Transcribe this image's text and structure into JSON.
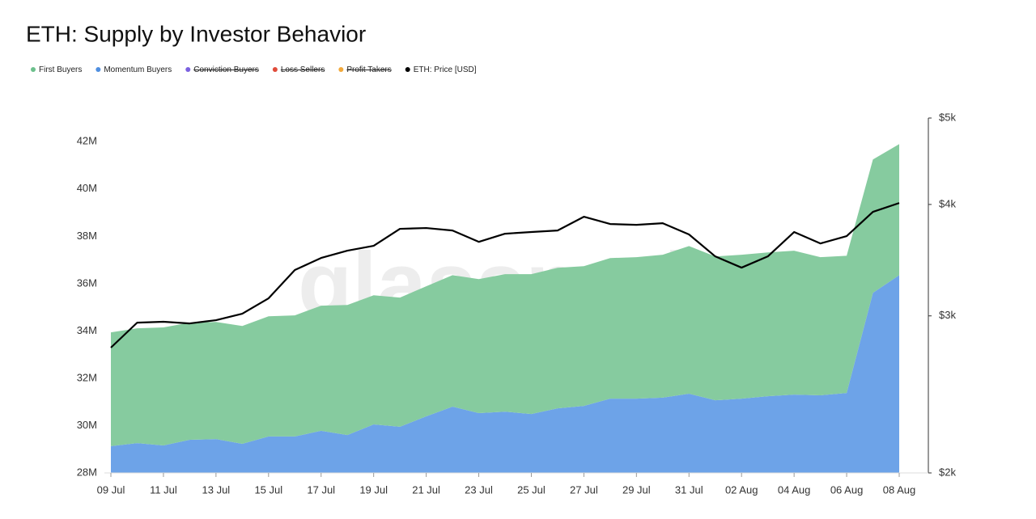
{
  "chart_data": {
    "type": "stacked-area-line",
    "title": "ETH: Supply by Investor Behavior",
    "watermark": "glassnode",
    "categories": [
      "09 Jul",
      null,
      "11 Jul",
      null,
      "13 Jul",
      null,
      "15 Jul",
      null,
      "17 Jul",
      null,
      "19 Jul",
      null,
      "21 Jul",
      null,
      "23 Jul",
      null,
      "25 Jul",
      null,
      "27 Jul",
      null,
      "29 Jul",
      null,
      "31 Jul",
      null,
      "02 Aug",
      null,
      "04 Aug",
      null,
      "06 Aug",
      null,
      "08 Aug"
    ],
    "series": [
      {
        "name": "First Buyers",
        "color": "#86cb9f",
        "legend_color": "#6cc08c",
        "stack": true,
        "values": [
          4810000,
          4850000,
          4990000,
          4950000,
          4950000,
          4980000,
          5080000,
          5120000,
          5290000,
          5500000,
          5460000,
          5460000,
          5500000,
          5560000,
          5660000,
          5810000,
          5910000,
          5940000,
          5910000,
          5940000,
          5980000,
          6040000,
          6240000,
          6080000,
          6080000,
          6080000,
          6080000,
          5840000,
          5800000,
          5640000,
          5540000
        ]
      },
      {
        "name": "Momentum Buyers",
        "color": "#6da3e8",
        "legend_color": "#4f8fe0",
        "stack": true,
        "values": [
          29130000,
          29260000,
          29160000,
          29400000,
          29430000,
          29230000,
          29540000,
          29540000,
          29780000,
          29600000,
          30050000,
          29950000,
          30390000,
          30800000,
          30530000,
          30590000,
          30490000,
          30730000,
          30830000,
          31140000,
          31140000,
          31180000,
          31350000,
          31070000,
          31140000,
          31240000,
          31310000,
          31280000,
          31380000,
          35610000,
          36360000
        ]
      },
      {
        "name": "Conviction Buyers",
        "color": "#7b61e0",
        "visible": false
      },
      {
        "name": "Loss Sellers",
        "color": "#e04b3a",
        "visible": false
      },
      {
        "name": "Profit Takers",
        "color": "#f2a93b",
        "visible": false
      },
      {
        "name": "ETH: Price [USD]",
        "color": "#000000",
        "axis": "y2",
        "values": [
          2764,
          2948,
          2955,
          2942,
          2967,
          3017,
          3139,
          3377,
          3484,
          3550,
          3595,
          3756,
          3764,
          3740,
          3632,
          3709,
          3725,
          3740,
          3875,
          3803,
          3795,
          3811,
          3702,
          3498,
          3398,
          3498,
          3725,
          3617,
          3686,
          3924,
          4015
        ]
      }
    ],
    "ylim": [
      28000000,
      43000000
    ],
    "yticks": [
      {
        "value": 28000000,
        "label": "28M"
      },
      {
        "value": 30000000,
        "label": "30M"
      },
      {
        "value": 32000000,
        "label": "32M"
      },
      {
        "value": 34000000,
        "label": "34M"
      },
      {
        "value": 36000000,
        "label": "36M"
      },
      {
        "value": 38000000,
        "label": "38M"
      },
      {
        "value": 40000000,
        "label": "40M"
      },
      {
        "value": 42000000,
        "label": "42M"
      }
    ],
    "y2lim": [
      2000,
      5000
    ],
    "y2log": true,
    "y2ticks": [
      {
        "value": 2000,
        "label": "$2k"
      },
      {
        "value": 3000,
        "label": "$3k"
      },
      {
        "value": 4000,
        "label": "$4k"
      },
      {
        "value": 5000,
        "label": "$5k"
      }
    ]
  }
}
